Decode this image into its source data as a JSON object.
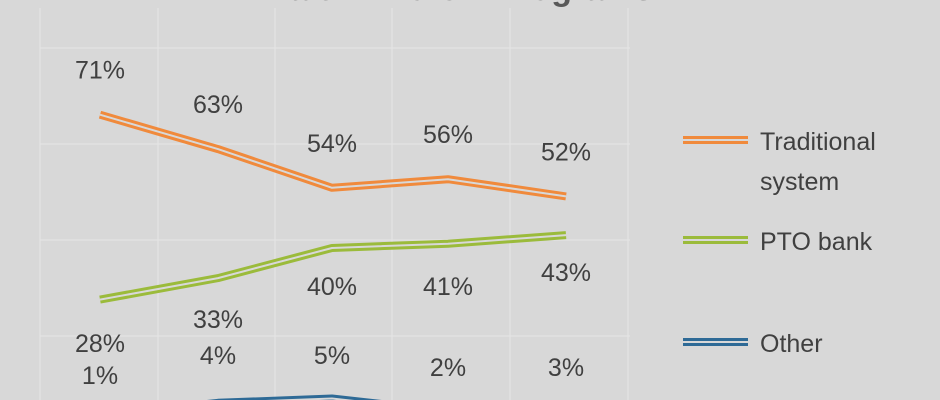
{
  "chart_data": {
    "type": "line",
    "title": "Paid Time Off Programs",
    "categories": [
      "",
      "",
      "",
      "",
      ""
    ],
    "series": [
      {
        "name": "Traditional system",
        "legend_lines": [
          "Traditional",
          "system"
        ],
        "values": [
          71,
          63,
          54,
          56,
          52
        ],
        "labels": [
          "71%",
          "63%",
          "54%",
          "56%",
          "52%"
        ],
        "color": "#f08a3c"
      },
      {
        "name": "PTO bank",
        "legend_lines": [
          "PTO bank"
        ],
        "values": [
          28,
          33,
          40,
          41,
          43
        ],
        "labels": [
          "28%",
          "33%",
          "40%",
          "41%",
          "43%"
        ],
        "color": "#9bbb3b"
      },
      {
        "name": "Other",
        "legend_lines": [
          "Other"
        ],
        "values": [
          1,
          4,
          5,
          2,
          3
        ],
        "labels": [
          "1%",
          "4%",
          "5%",
          "2%",
          "3%"
        ],
        "color": "#2e6a96"
      }
    ],
    "ylim": [
      0,
      80
    ],
    "grid": true,
    "legend": "right",
    "xlabel": "",
    "ylabel": ""
  }
}
